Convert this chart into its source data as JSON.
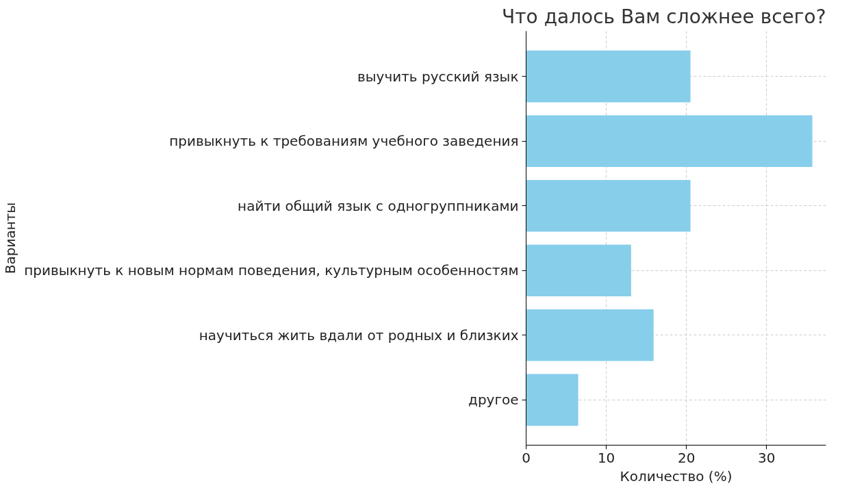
{
  "chart_data": {
    "type": "bar",
    "orientation": "horizontal",
    "title": "Что далось Вам сложнее всего?",
    "xlabel": "Количество (%)",
    "ylabel": "Варианты",
    "categories": [
      "выучить русский язык",
      "привыкнуть к требованиям учебного заведения",
      "найти общий язык с одногруппниками",
      "привыкнуть к новым нормам поведения, культурным особенностям",
      "научиться жить вдали от родных и близких",
      "другое"
    ],
    "values": [
      20.5,
      35.7,
      20.5,
      13.1,
      15.9,
      6.5
    ],
    "color": "#87ceeb",
    "xlim": [
      0,
      37.4
    ],
    "xticks": [
      0,
      10,
      20,
      30
    ],
    "grid": true
  }
}
